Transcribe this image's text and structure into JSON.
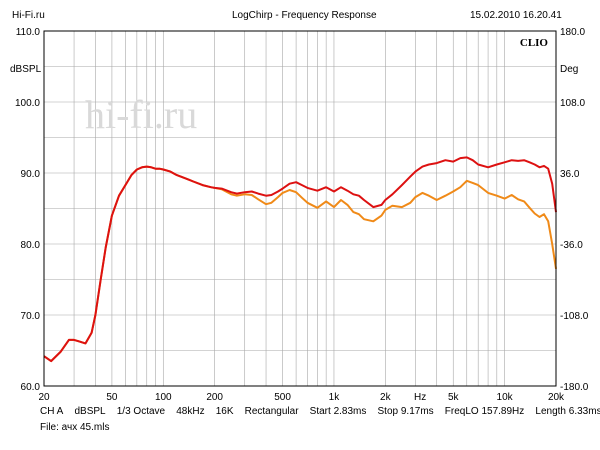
{
  "header": {
    "site": "Hi-Fi.ru",
    "title": "LogChirp - Frequency Response",
    "datetime": "15.02.2010 16.20.41"
  },
  "brand": "CLIO",
  "watermark": "hi-fi.ru",
  "chart_data": {
    "type": "line",
    "title": "LogChirp - Frequency Response",
    "xlabel": "Hz",
    "ylabel": "dBSPL",
    "y2label": "Deg",
    "xscale": "log",
    "xlim": [
      20,
      20000
    ],
    "ylim": [
      60,
      110
    ],
    "y2lim": [
      -180,
      180
    ],
    "grid": true,
    "yticks": [
      "60.0",
      "70.0",
      "80.0",
      "90.0",
      "100.0",
      "110.0"
    ],
    "y2ticks": [
      "-180.0",
      "-108.0",
      "-36.0",
      "36.0",
      "108.0",
      "180.0"
    ],
    "xticks": [
      {
        "v": 20,
        "label": "20"
      },
      {
        "v": 50,
        "label": "50"
      },
      {
        "v": 100,
        "label": "100"
      },
      {
        "v": 200,
        "label": "200"
      },
      {
        "v": 500,
        "label": "500"
      },
      {
        "v": 1000,
        "label": "1k"
      },
      {
        "v": 2000,
        "label": "2k"
      },
      {
        "v": 5000,
        "label": "5k"
      },
      {
        "v": 10000,
        "label": "10k"
      },
      {
        "v": 20000,
        "label": "20k"
      }
    ],
    "series": [
      {
        "name": "red",
        "color": "#dd1111",
        "x": [
          20,
          22,
          25,
          28,
          30,
          32,
          35,
          38,
          40,
          43,
          46,
          50,
          55,
          60,
          65,
          70,
          75,
          80,
          85,
          90,
          95,
          100,
          110,
          120,
          130,
          140,
          150,
          170,
          190,
          200,
          220,
          250,
          270,
          300,
          330,
          360,
          400,
          430,
          470,
          500,
          550,
          600,
          650,
          700,
          800,
          900,
          1000,
          1100,
          1200,
          1300,
          1400,
          1500,
          1700,
          1900,
          2000,
          2200,
          2500,
          2800,
          3000,
          3300,
          3600,
          4000,
          4500,
          5000,
          5500,
          6000,
          6500,
          7000,
          8000,
          9000,
          10000,
          11000,
          12000,
          13000,
          14000,
          15000,
          16000,
          17000,
          18000,
          19000,
          20000
        ],
        "values": [
          64.2,
          63.5,
          64.8,
          66.5,
          66.5,
          66.3,
          66.0,
          67.5,
          70.0,
          75.0,
          79.5,
          84.0,
          86.8,
          88.3,
          89.7,
          90.5,
          90.8,
          90.9,
          90.8,
          90.6,
          90.6,
          90.5,
          90.2,
          89.7,
          89.4,
          89.1,
          88.8,
          88.3,
          88.0,
          87.9,
          87.8,
          87.3,
          87.1,
          87.3,
          87.4,
          87.1,
          86.8,
          86.9,
          87.4,
          87.8,
          88.5,
          88.7,
          88.3,
          87.9,
          87.5,
          88.0,
          87.4,
          88.0,
          87.5,
          87.0,
          86.8,
          86.2,
          85.2,
          85.5,
          86.2,
          87.0,
          88.3,
          89.5,
          90.2,
          90.9,
          91.2,
          91.4,
          91.8,
          91.6,
          92.1,
          92.2,
          91.8,
          91.2,
          90.8,
          91.2,
          91.5,
          91.8,
          91.7,
          91.8,
          91.5,
          91.2,
          90.8,
          91.0,
          90.6,
          88.5,
          84.5
        ]
      },
      {
        "name": "orange",
        "color": "#f08a18",
        "x": [
          20,
          22,
          25,
          28,
          30,
          32,
          35,
          38,
          40,
          43,
          46,
          50,
          55,
          60,
          65,
          70,
          75,
          80,
          85,
          90,
          95,
          100,
          110,
          120,
          130,
          140,
          150,
          170,
          190,
          200,
          220,
          250,
          270,
          300,
          330,
          360,
          400,
          430,
          470,
          500,
          550,
          600,
          650,
          700,
          800,
          900,
          1000,
          1100,
          1200,
          1300,
          1400,
          1500,
          1700,
          1900,
          2000,
          2200,
          2500,
          2800,
          3000,
          3300,
          3600,
          4000,
          4500,
          5000,
          5500,
          6000,
          6500,
          7000,
          8000,
          9000,
          10000,
          11000,
          12000,
          13000,
          14000,
          15000,
          16000,
          17000,
          18000,
          19000,
          20000
        ],
        "values": [
          64.2,
          63.5,
          64.8,
          66.5,
          66.5,
          66.3,
          66.0,
          67.5,
          70.0,
          75.0,
          79.5,
          84.0,
          86.8,
          88.3,
          89.7,
          90.5,
          90.8,
          90.9,
          90.8,
          90.6,
          90.6,
          90.5,
          90.2,
          89.7,
          89.4,
          89.1,
          88.8,
          88.3,
          88.0,
          87.9,
          87.7,
          87.0,
          86.8,
          87.0,
          86.9,
          86.3,
          85.6,
          85.8,
          86.6,
          87.2,
          87.6,
          87.3,
          86.5,
          85.8,
          85.1,
          86.0,
          85.2,
          86.2,
          85.5,
          84.5,
          84.2,
          83.5,
          83.2,
          84.0,
          84.8,
          85.4,
          85.2,
          85.8,
          86.6,
          87.2,
          86.8,
          86.2,
          86.8,
          87.4,
          88.0,
          88.9,
          88.6,
          88.3,
          87.2,
          86.8,
          86.4,
          86.9,
          86.3,
          86.0,
          85.1,
          84.3,
          83.8,
          84.2,
          83.2,
          80.0,
          76.5
        ]
      }
    ]
  },
  "footer": {
    "line1": [
      "CH A",
      "dBSPL",
      "1/3 Octave",
      "48kHz",
      "16K",
      "Rectangular",
      "Start 2.83ms",
      "Stop 9.17ms",
      "FreqLO 157.89Hz",
      "Length 6.33ms"
    ],
    "line2": "File: ачх 45.mls"
  }
}
